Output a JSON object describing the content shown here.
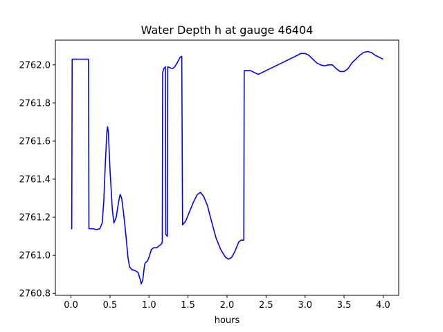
{
  "chart_data": {
    "type": "line",
    "title": "Water Depth h at gauge 46404",
    "xlabel": "hours",
    "ylabel": "",
    "xlim": [
      -0.2,
      4.2
    ],
    "ylim": [
      2760.79,
      2762.13
    ],
    "x_ticks": [
      0.0,
      0.5,
      1.0,
      1.5,
      2.0,
      2.5,
      3.0,
      3.5,
      4.0
    ],
    "x_tick_labels": [
      "0.0",
      "0.5",
      "1.0",
      "1.5",
      "2.0",
      "2.5",
      "3.0",
      "3.5",
      "4.0"
    ],
    "y_ticks": [
      2760.8,
      2761.0,
      2761.2,
      2761.4,
      2761.6,
      2761.8,
      2762.0
    ],
    "y_tick_labels": [
      "2760.8",
      "2761.0",
      "2761.2",
      "2761.4",
      "2761.6",
      "2761.8",
      "2762.0"
    ],
    "grid": false,
    "legend": "none",
    "series": [
      {
        "color": "#0000ff",
        "points": [
          [
            0.0,
            2761.14
          ],
          [
            0.01,
            2761.14
          ],
          [
            0.015,
            2762.03
          ],
          [
            0.05,
            2762.03
          ],
          [
            0.1,
            2762.03
          ],
          [
            0.15,
            2762.03
          ],
          [
            0.2,
            2762.03
          ],
          [
            0.225,
            2762.03
          ],
          [
            0.23,
            2761.14
          ],
          [
            0.28,
            2761.14
          ],
          [
            0.33,
            2761.135
          ],
          [
            0.37,
            2761.14
          ],
          [
            0.4,
            2761.17
          ],
          [
            0.42,
            2761.28
          ],
          [
            0.44,
            2761.48
          ],
          [
            0.46,
            2761.65
          ],
          [
            0.47,
            2761.675
          ],
          [
            0.48,
            2761.64
          ],
          [
            0.5,
            2761.45
          ],
          [
            0.53,
            2761.24
          ],
          [
            0.55,
            2761.17
          ],
          [
            0.58,
            2761.2
          ],
          [
            0.61,
            2761.28
          ],
          [
            0.63,
            2761.32
          ],
          [
            0.65,
            2761.3
          ],
          [
            0.68,
            2761.2
          ],
          [
            0.71,
            2761.08
          ],
          [
            0.73,
            2760.99
          ],
          [
            0.75,
            2760.94
          ],
          [
            0.78,
            2760.925
          ],
          [
            0.82,
            2760.92
          ],
          [
            0.86,
            2760.91
          ],
          [
            0.89,
            2760.87
          ],
          [
            0.9,
            2760.85
          ],
          [
            0.92,
            2760.87
          ],
          [
            0.94,
            2760.94
          ],
          [
            0.95,
            2760.96
          ],
          [
            0.98,
            2760.97
          ],
          [
            1.0,
            2760.99
          ],
          [
            1.03,
            2761.03
          ],
          [
            1.06,
            2761.04
          ],
          [
            1.1,
            2761.04
          ],
          [
            1.13,
            2761.05
          ],
          [
            1.16,
            2761.06
          ],
          [
            1.17,
            2761.07
          ],
          [
            1.175,
            2761.96
          ],
          [
            1.19,
            2761.98
          ],
          [
            1.21,
            2761.99
          ],
          [
            1.215,
            2761.11
          ],
          [
            1.235,
            2761.1
          ],
          [
            1.24,
            2761.99
          ],
          [
            1.27,
            2761.985
          ],
          [
            1.3,
            2761.98
          ],
          [
            1.33,
            2761.99
          ],
          [
            1.36,
            2762.01
          ],
          [
            1.4,
            2762.04
          ],
          [
            1.42,
            2762.045
          ],
          [
            1.43,
            2761.16
          ],
          [
            1.47,
            2761.18
          ],
          [
            1.52,
            2761.23
          ],
          [
            1.57,
            2761.28
          ],
          [
            1.62,
            2761.32
          ],
          [
            1.66,
            2761.33
          ],
          [
            1.7,
            2761.31
          ],
          [
            1.75,
            2761.26
          ],
          [
            1.8,
            2761.18
          ],
          [
            1.86,
            2761.09
          ],
          [
            1.92,
            2761.03
          ],
          [
            1.98,
            2760.99
          ],
          [
            2.02,
            2760.98
          ],
          [
            2.06,
            2760.99
          ],
          [
            2.1,
            2761.02
          ],
          [
            2.15,
            2761.07
          ],
          [
            2.18,
            2761.08
          ],
          [
            2.215,
            2761.08
          ],
          [
            2.22,
            2761.97
          ],
          [
            2.25,
            2761.97
          ],
          [
            2.3,
            2761.97
          ],
          [
            2.35,
            2761.96
          ],
          [
            2.4,
            2761.95
          ],
          [
            2.45,
            2761.96
          ],
          [
            2.5,
            2761.97
          ],
          [
            2.55,
            2761.98
          ],
          [
            2.6,
            2761.99
          ],
          [
            2.65,
            2762.0
          ],
          [
            2.7,
            2762.01
          ],
          [
            2.8,
            2762.03
          ],
          [
            2.9,
            2762.05
          ],
          [
            2.95,
            2762.06
          ],
          [
            3.0,
            2762.06
          ],
          [
            3.05,
            2762.05
          ],
          [
            3.1,
            2762.03
          ],
          [
            3.15,
            2762.01
          ],
          [
            3.2,
            2762.0
          ],
          [
            3.25,
            2761.995
          ],
          [
            3.3,
            2762.0
          ],
          [
            3.35,
            2762.0
          ],
          [
            3.4,
            2761.98
          ],
          [
            3.45,
            2761.965
          ],
          [
            3.5,
            2761.965
          ],
          [
            3.55,
            2761.98
          ],
          [
            3.6,
            2762.01
          ],
          [
            3.65,
            2762.03
          ],
          [
            3.7,
            2762.05
          ],
          [
            3.75,
            2762.065
          ],
          [
            3.8,
            2762.07
          ],
          [
            3.85,
            2762.065
          ],
          [
            3.9,
            2762.05
          ],
          [
            3.95,
            2762.04
          ],
          [
            4.0,
            2762.03
          ]
        ]
      }
    ]
  }
}
